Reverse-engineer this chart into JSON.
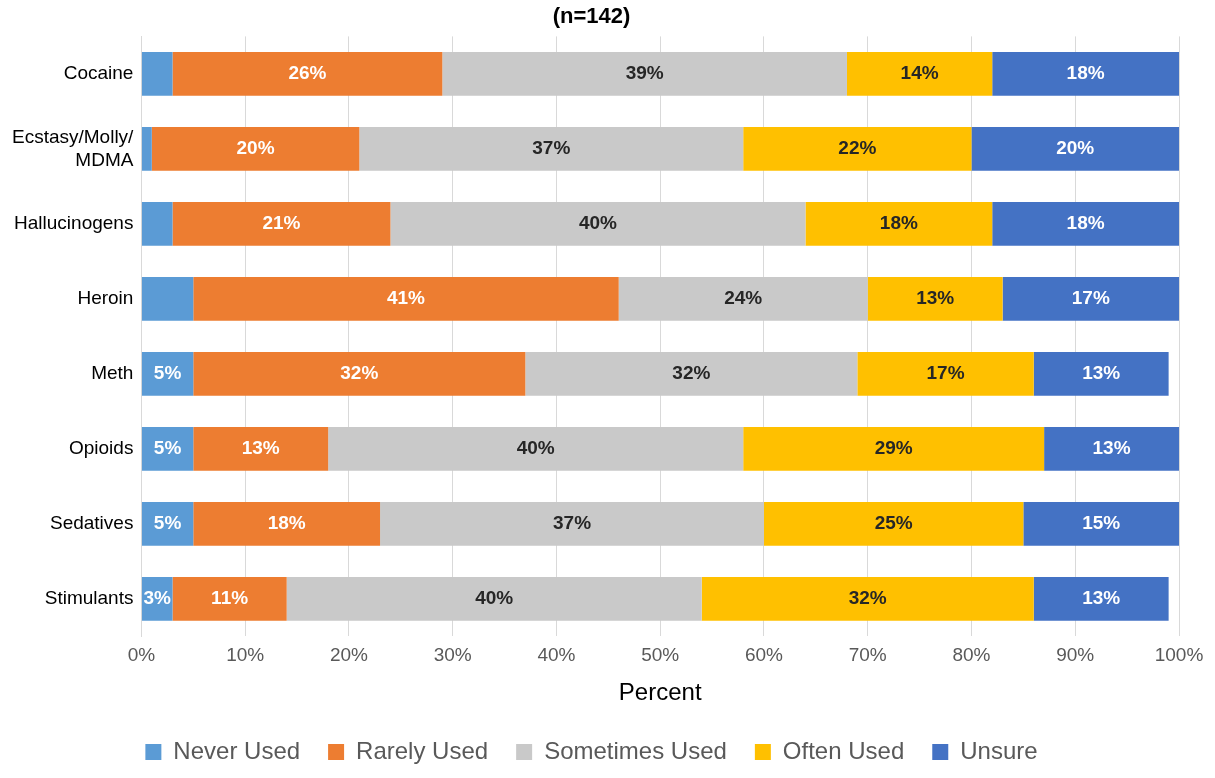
{
  "chart_data": {
    "type": "bar",
    "orientation": "horizontal",
    "stacked": true,
    "title": "(n=142)",
    "xlabel": "Percent",
    "categories": [
      "Cocaine",
      "Ecstasy/Molly/\nMDMA",
      "Hallucinogens",
      "Heroin",
      "Meth",
      "Opioids",
      "Sedatives",
      "Stimulants"
    ],
    "series": [
      {
        "name": "Never Used",
        "color": "#5b9bd5",
        "values": [
          3,
          1,
          3,
          5,
          5,
          5,
          5,
          3
        ],
        "value_labels": [
          null,
          null,
          null,
          null,
          "5%",
          "5%",
          "5%",
          "3%"
        ]
      },
      {
        "name": "Rarely Used",
        "color": "#ed7d31",
        "values": [
          26,
          20,
          21,
          41,
          32,
          13,
          18,
          11
        ],
        "value_labels": [
          "26%",
          "20%",
          "21%",
          "41%",
          "32%",
          "13%",
          "18%",
          "11%"
        ]
      },
      {
        "name": "Sometimes Used",
        "color": "#c9c9c9",
        "values": [
          39,
          37,
          40,
          24,
          32,
          40,
          37,
          40
        ],
        "value_labels": [
          "39%",
          "37%",
          "40%",
          "24%",
          "32%",
          "40%",
          "37%",
          "40%"
        ]
      },
      {
        "name": "Often Used",
        "color": "#ffc000",
        "values": [
          14,
          22,
          18,
          13,
          17,
          29,
          25,
          32
        ],
        "value_labels": [
          "14%",
          "22%",
          "18%",
          "13%",
          "17%",
          "29%",
          "25%",
          "32%"
        ]
      },
      {
        "name": "Unsure",
        "color": "#4472c4",
        "values": [
          18,
          20,
          18,
          17,
          13,
          13,
          15,
          13
        ],
        "value_labels": [
          "18%",
          "20%",
          "18%",
          "17%",
          "13%",
          "13%",
          "15%",
          "13%"
        ]
      }
    ],
    "xlim": [
      0,
      100
    ],
    "xticks": [
      {
        "value": 0,
        "label": "0%"
      },
      {
        "value": 10,
        "label": "10%"
      },
      {
        "value": 20,
        "label": "20%"
      },
      {
        "value": 30,
        "label": "30%"
      },
      {
        "value": 40,
        "label": "40%"
      },
      {
        "value": 50,
        "label": "50%"
      },
      {
        "value": 60,
        "label": "60%"
      },
      {
        "value": 70,
        "label": "70%"
      },
      {
        "value": 80,
        "label": "80%"
      },
      {
        "value": 90,
        "label": "90%"
      },
      {
        "value": 100,
        "label": "100%"
      }
    ],
    "grid": "x",
    "legend": "bottom"
  }
}
